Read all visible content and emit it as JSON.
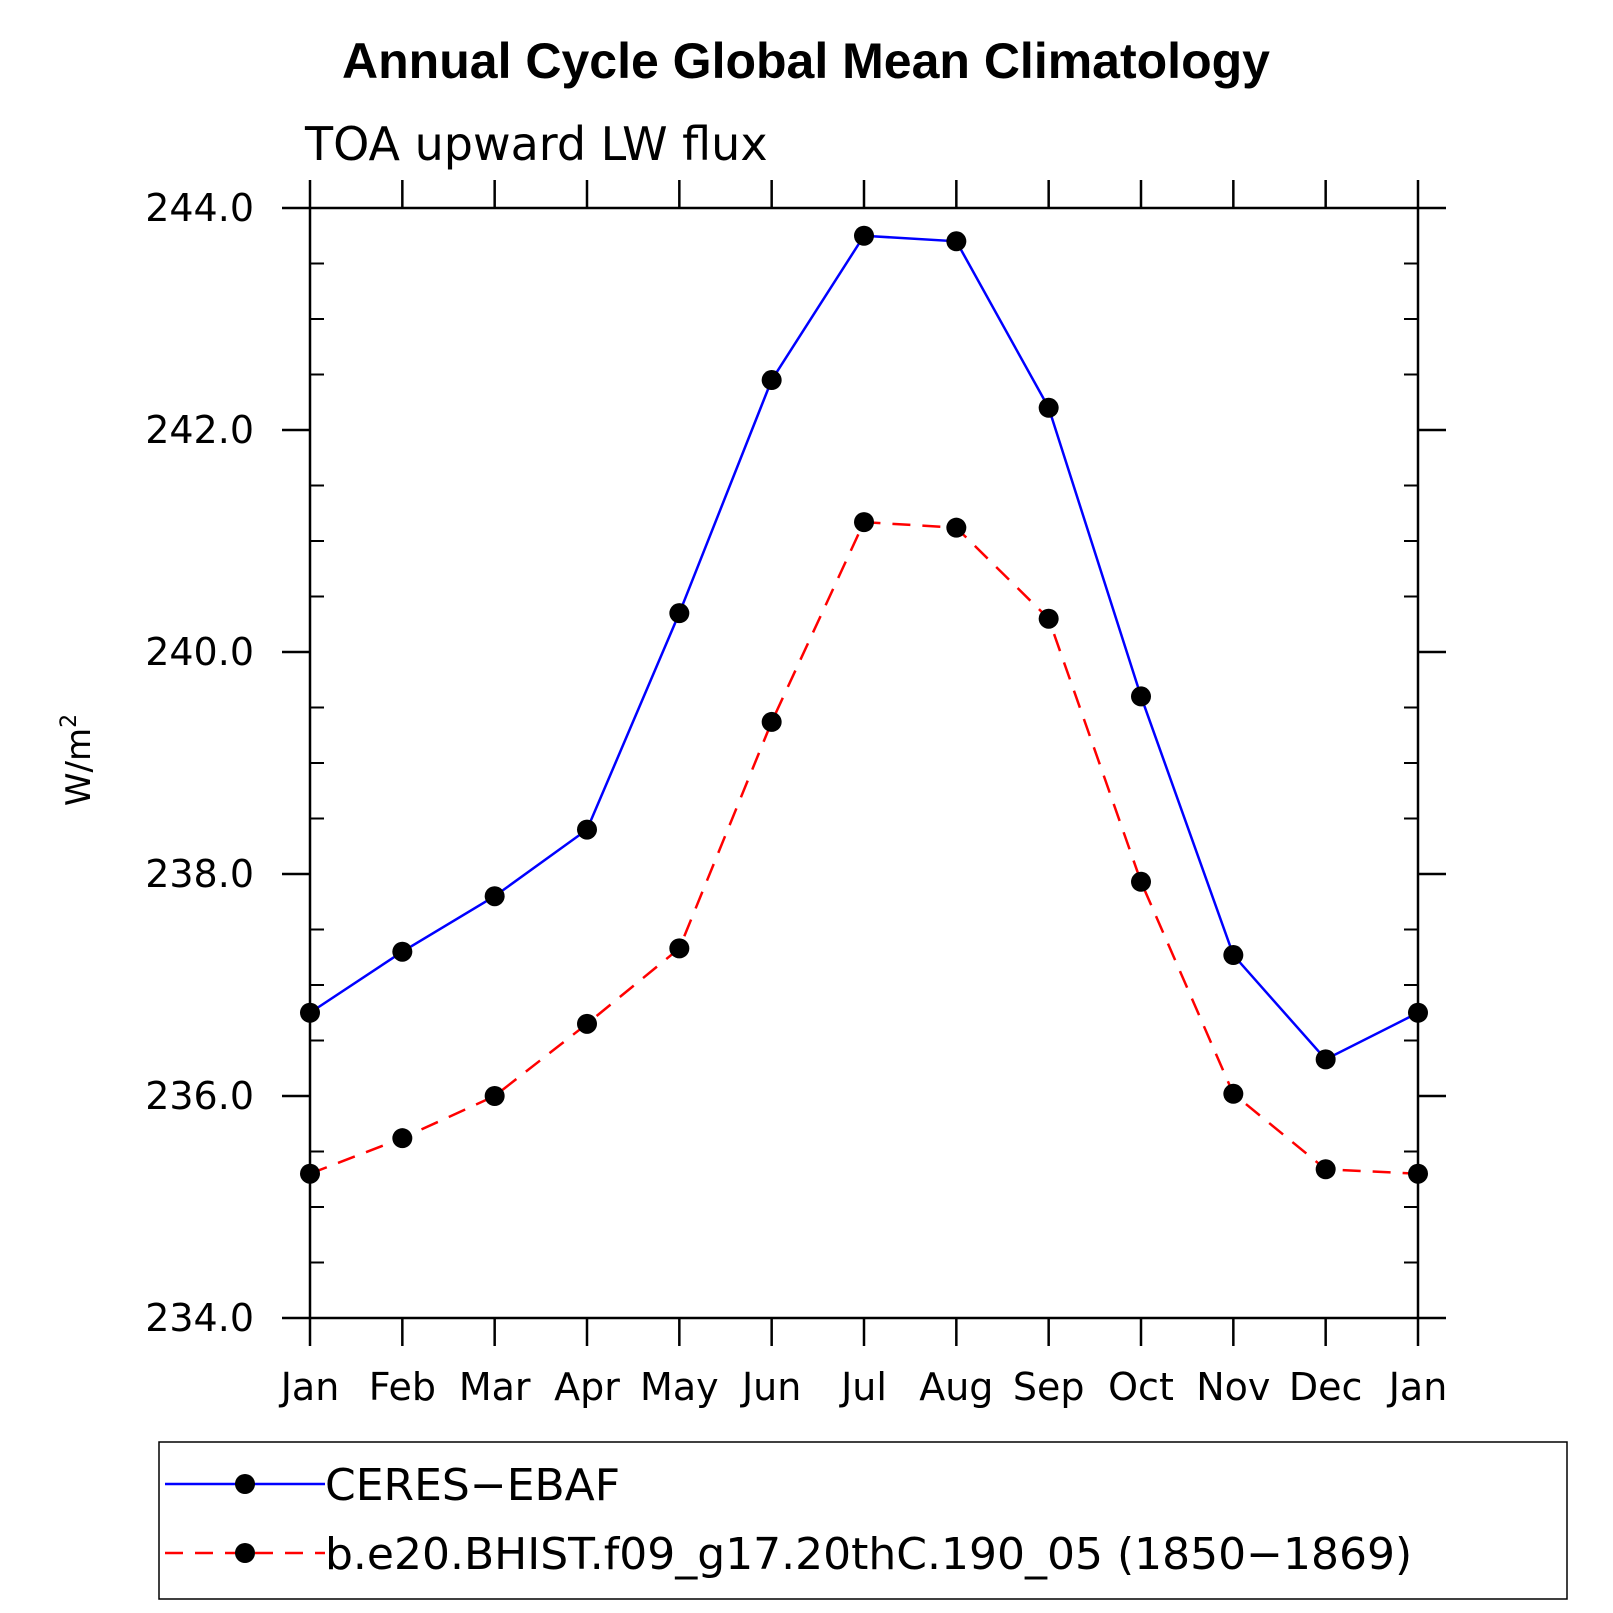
{
  "chart_data": {
    "type": "line",
    "title": "Annual Cycle Global Mean Climatology",
    "subtitle": "TOA upward LW flux",
    "ylabel": "W/m",
    "ylabel_superscript": "2",
    "xlabel": "",
    "categories": [
      "Jan",
      "Feb",
      "Mar",
      "Apr",
      "May",
      "Jun",
      "Jul",
      "Aug",
      "Sep",
      "Oct",
      "Nov",
      "Dec",
      "Jan"
    ],
    "ylim": [
      234.0,
      244.0
    ],
    "yticks": [
      "234.0",
      "236.0",
      "238.0",
      "240.0",
      "242.0",
      "244.0"
    ],
    "ytick_values": [
      234,
      236,
      238,
      240,
      242,
      244
    ],
    "grid": false,
    "legend_position": "bottom",
    "series": [
      {
        "name": "CERES−EBAF",
        "color": "#0000ff",
        "line_style": "solid",
        "marker": "filled-circle",
        "values": [
          236.75,
          237.3,
          237.8,
          238.4,
          240.35,
          242.45,
          243.75,
          243.7,
          242.2,
          239.6,
          237.27,
          236.33,
          236.75
        ]
      },
      {
        "name": "b.e20.BHIST.f09_g17.20thC.190_05 (1850−1869)",
        "color": "#ff0000",
        "line_style": "dashed",
        "marker": "filled-circle",
        "values": [
          235.3,
          235.62,
          236.0,
          236.65,
          237.33,
          239.37,
          241.17,
          241.12,
          240.3,
          237.93,
          236.02,
          235.34,
          235.3
        ]
      }
    ]
  }
}
